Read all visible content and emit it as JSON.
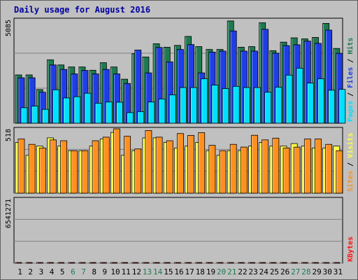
{
  "title": "Daily usage for August 2016",
  "colors": {
    "background": "#c0c0c0",
    "plot_background": "#c0c0c0",
    "title": "#0000a0",
    "hits": "#1e7a50",
    "files": "#1e3ee8",
    "pages": "#00e0ff",
    "visits": "#ffff40",
    "sites": "#ff9020",
    "kbytes": "#ff1010",
    "weekend": "#1e7a50",
    "weekday": "#000000"
  },
  "chart_data": [
    {
      "type": "bar",
      "panel": "top",
      "ymax_label": "5085",
      "ymax": 5085,
      "legend": [
        {
          "label": "Pages",
          "color": "#00e0ff"
        },
        {
          "label": "Files",
          "color": "#1e3ee8"
        },
        {
          "label": "Hits",
          "color": "#1e7a50"
        }
      ],
      "categories": [
        "1",
        "2",
        "3",
        "4",
        "5",
        "6",
        "7",
        "8",
        "9",
        "10",
        "11",
        "12",
        "13",
        "14",
        "15",
        "16",
        "17",
        "18",
        "19",
        "20",
        "21",
        "22",
        "23",
        "24",
        "25",
        "26",
        "27",
        "28",
        "29",
        "30",
        "31"
      ],
      "series": [
        {
          "name": "Hits",
          "values": [
            2370,
            2370,
            1650,
            3110,
            2860,
            2760,
            2760,
            2600,
            2970,
            2760,
            2160,
            3410,
            3250,
            3900,
            3730,
            3820,
            4260,
            3760,
            3620,
            3620,
            5020,
            3730,
            3760,
            4930,
            3560,
            3980,
            4190,
            4140,
            4210,
            4900,
            3670
          ]
        },
        {
          "name": "Files",
          "values": [
            2230,
            2230,
            1520,
            2860,
            2640,
            2420,
            2590,
            2420,
            2640,
            2420,
            1950,
            3590,
            2470,
            3720,
            3010,
            3620,
            3860,
            2470,
            3490,
            3540,
            4530,
            3540,
            3540,
            4610,
            3440,
            3810,
            3850,
            4030,
            3920,
            4570,
            3430
          ]
        },
        {
          "name": "Pages",
          "values": [
            760,
            840,
            680,
            1640,
            1240,
            1300,
            1470,
            980,
            1040,
            1030,
            520,
            570,
            1040,
            1190,
            1390,
            1750,
            1750,
            2180,
            1870,
            1700,
            1810,
            1750,
            1750,
            1520,
            1770,
            2360,
            2700,
            1970,
            2180,
            1620,
            1660
          ]
        }
      ]
    },
    {
      "type": "bar",
      "panel": "middle",
      "ymax_label": "518",
      "ymax": 518,
      "legend": [
        {
          "label": "Sites",
          "color": "#ff9020"
        },
        {
          "label": "Visits",
          "color": "#ffff40"
        }
      ],
      "categories": [
        "1",
        "2",
        "3",
        "4",
        "5",
        "6",
        "7",
        "8",
        "9",
        "10",
        "11",
        "12",
        "13",
        "14",
        "15",
        "16",
        "17",
        "18",
        "19",
        "20",
        "21",
        "22",
        "23",
        "24",
        "25",
        "26",
        "27",
        "28",
        "29",
        "30",
        "31"
      ],
      "series": [
        {
          "name": "Visits",
          "values": [
            408,
            305,
            379,
            445,
            379,
            342,
            342,
            379,
            437,
            489,
            305,
            342,
            445,
            445,
            409,
            364,
            379,
            408,
            342,
            305,
            342,
            342,
            379,
            408,
            379,
            379,
            399,
            379,
            364,
            364,
            379
          ]
        },
        {
          "name": "Sites",
          "values": [
            436,
            393,
            364,
            429,
            422,
            342,
            342,
            422,
            451,
            518,
            458,
            356,
            504,
            451,
            422,
            480,
            465,
            487,
            385,
            342,
            393,
            371,
            466,
            429,
            443,
            364,
            371,
            436,
            436,
            393,
            342
          ]
        }
      ]
    },
    {
      "type": "bar",
      "panel": "bottom",
      "ymax_label": "6541271",
      "ymax": 6541271,
      "legend": [
        {
          "label": "KBytes",
          "color": "#ff1010"
        }
      ],
      "categories": [
        "1",
        "2",
        "3",
        "4",
        "5",
        "6",
        "7",
        "8",
        "9",
        "10",
        "11",
        "12",
        "13",
        "14",
        "15",
        "16",
        "17",
        "18",
        "19",
        "20",
        "21",
        "22",
        "23",
        "24",
        "25",
        "26",
        "27",
        "28",
        "29",
        "30",
        "31"
      ],
      "series": [
        {
          "name": "KBytes",
          "values": [
            670,
            3430,
            1560,
            670,
            470,
            300,
            5750,
            890,
            890,
            890,
            1180,
            670,
            890,
            1780,
            4580,
            1710,
            1280,
            2410,
            3180,
            2050,
            1340,
            1130,
            2190,
            1140,
            1780,
            1030,
            1500,
            1030,
            2780,
            6540,
            1340
          ]
        }
      ]
    }
  ],
  "weekend_days": [
    "6",
    "7",
    "13",
    "14",
    "20",
    "21",
    "27",
    "28"
  ]
}
